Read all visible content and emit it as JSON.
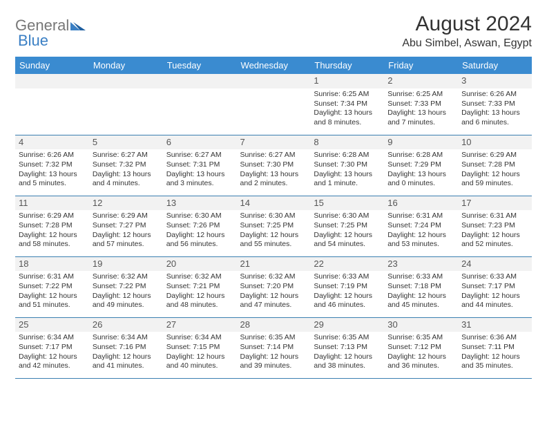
{
  "brand": {
    "part1": "General",
    "part2": "Blue"
  },
  "title": "August 2024",
  "location": "Abu Simbel, Aswan, Egypt",
  "colors": {
    "header_bg": "#3a8bd0",
    "rule": "#3a7fb0",
    "shade": "#f2f2f2",
    "text": "#333333",
    "logo_gray": "#777777",
    "logo_blue": "#3a7fc4"
  },
  "dow": [
    "Sunday",
    "Monday",
    "Tuesday",
    "Wednesday",
    "Thursday",
    "Friday",
    "Saturday"
  ],
  "weeks": [
    [
      null,
      null,
      null,
      null,
      {
        "n": "1",
        "sr": "Sunrise: 6:25 AM",
        "ss": "Sunset: 7:34 PM",
        "dl": "Daylight: 13 hours and 8 minutes."
      },
      {
        "n": "2",
        "sr": "Sunrise: 6:25 AM",
        "ss": "Sunset: 7:33 PM",
        "dl": "Daylight: 13 hours and 7 minutes."
      },
      {
        "n": "3",
        "sr": "Sunrise: 6:26 AM",
        "ss": "Sunset: 7:33 PM",
        "dl": "Daylight: 13 hours and 6 minutes."
      }
    ],
    [
      {
        "n": "4",
        "sr": "Sunrise: 6:26 AM",
        "ss": "Sunset: 7:32 PM",
        "dl": "Daylight: 13 hours and 5 minutes."
      },
      {
        "n": "5",
        "sr": "Sunrise: 6:27 AM",
        "ss": "Sunset: 7:32 PM",
        "dl": "Daylight: 13 hours and 4 minutes."
      },
      {
        "n": "6",
        "sr": "Sunrise: 6:27 AM",
        "ss": "Sunset: 7:31 PM",
        "dl": "Daylight: 13 hours and 3 minutes."
      },
      {
        "n": "7",
        "sr": "Sunrise: 6:27 AM",
        "ss": "Sunset: 7:30 PM",
        "dl": "Daylight: 13 hours and 2 minutes."
      },
      {
        "n": "8",
        "sr": "Sunrise: 6:28 AM",
        "ss": "Sunset: 7:30 PM",
        "dl": "Daylight: 13 hours and 1 minute."
      },
      {
        "n": "9",
        "sr": "Sunrise: 6:28 AM",
        "ss": "Sunset: 7:29 PM",
        "dl": "Daylight: 13 hours and 0 minutes."
      },
      {
        "n": "10",
        "sr": "Sunrise: 6:29 AM",
        "ss": "Sunset: 7:28 PM",
        "dl": "Daylight: 12 hours and 59 minutes."
      }
    ],
    [
      {
        "n": "11",
        "sr": "Sunrise: 6:29 AM",
        "ss": "Sunset: 7:28 PM",
        "dl": "Daylight: 12 hours and 58 minutes."
      },
      {
        "n": "12",
        "sr": "Sunrise: 6:29 AM",
        "ss": "Sunset: 7:27 PM",
        "dl": "Daylight: 12 hours and 57 minutes."
      },
      {
        "n": "13",
        "sr": "Sunrise: 6:30 AM",
        "ss": "Sunset: 7:26 PM",
        "dl": "Daylight: 12 hours and 56 minutes."
      },
      {
        "n": "14",
        "sr": "Sunrise: 6:30 AM",
        "ss": "Sunset: 7:25 PM",
        "dl": "Daylight: 12 hours and 55 minutes."
      },
      {
        "n": "15",
        "sr": "Sunrise: 6:30 AM",
        "ss": "Sunset: 7:25 PM",
        "dl": "Daylight: 12 hours and 54 minutes."
      },
      {
        "n": "16",
        "sr": "Sunrise: 6:31 AM",
        "ss": "Sunset: 7:24 PM",
        "dl": "Daylight: 12 hours and 53 minutes."
      },
      {
        "n": "17",
        "sr": "Sunrise: 6:31 AM",
        "ss": "Sunset: 7:23 PM",
        "dl": "Daylight: 12 hours and 52 minutes."
      }
    ],
    [
      {
        "n": "18",
        "sr": "Sunrise: 6:31 AM",
        "ss": "Sunset: 7:22 PM",
        "dl": "Daylight: 12 hours and 51 minutes."
      },
      {
        "n": "19",
        "sr": "Sunrise: 6:32 AM",
        "ss": "Sunset: 7:22 PM",
        "dl": "Daylight: 12 hours and 49 minutes."
      },
      {
        "n": "20",
        "sr": "Sunrise: 6:32 AM",
        "ss": "Sunset: 7:21 PM",
        "dl": "Daylight: 12 hours and 48 minutes."
      },
      {
        "n": "21",
        "sr": "Sunrise: 6:32 AM",
        "ss": "Sunset: 7:20 PM",
        "dl": "Daylight: 12 hours and 47 minutes."
      },
      {
        "n": "22",
        "sr": "Sunrise: 6:33 AM",
        "ss": "Sunset: 7:19 PM",
        "dl": "Daylight: 12 hours and 46 minutes."
      },
      {
        "n": "23",
        "sr": "Sunrise: 6:33 AM",
        "ss": "Sunset: 7:18 PM",
        "dl": "Daylight: 12 hours and 45 minutes."
      },
      {
        "n": "24",
        "sr": "Sunrise: 6:33 AM",
        "ss": "Sunset: 7:17 PM",
        "dl": "Daylight: 12 hours and 44 minutes."
      }
    ],
    [
      {
        "n": "25",
        "sr": "Sunrise: 6:34 AM",
        "ss": "Sunset: 7:17 PM",
        "dl": "Daylight: 12 hours and 42 minutes."
      },
      {
        "n": "26",
        "sr": "Sunrise: 6:34 AM",
        "ss": "Sunset: 7:16 PM",
        "dl": "Daylight: 12 hours and 41 minutes."
      },
      {
        "n": "27",
        "sr": "Sunrise: 6:34 AM",
        "ss": "Sunset: 7:15 PM",
        "dl": "Daylight: 12 hours and 40 minutes."
      },
      {
        "n": "28",
        "sr": "Sunrise: 6:35 AM",
        "ss": "Sunset: 7:14 PM",
        "dl": "Daylight: 12 hours and 39 minutes."
      },
      {
        "n": "29",
        "sr": "Sunrise: 6:35 AM",
        "ss": "Sunset: 7:13 PM",
        "dl": "Daylight: 12 hours and 38 minutes."
      },
      {
        "n": "30",
        "sr": "Sunrise: 6:35 AM",
        "ss": "Sunset: 7:12 PM",
        "dl": "Daylight: 12 hours and 36 minutes."
      },
      {
        "n": "31",
        "sr": "Sunrise: 6:36 AM",
        "ss": "Sunset: 7:11 PM",
        "dl": "Daylight: 12 hours and 35 minutes."
      }
    ]
  ]
}
